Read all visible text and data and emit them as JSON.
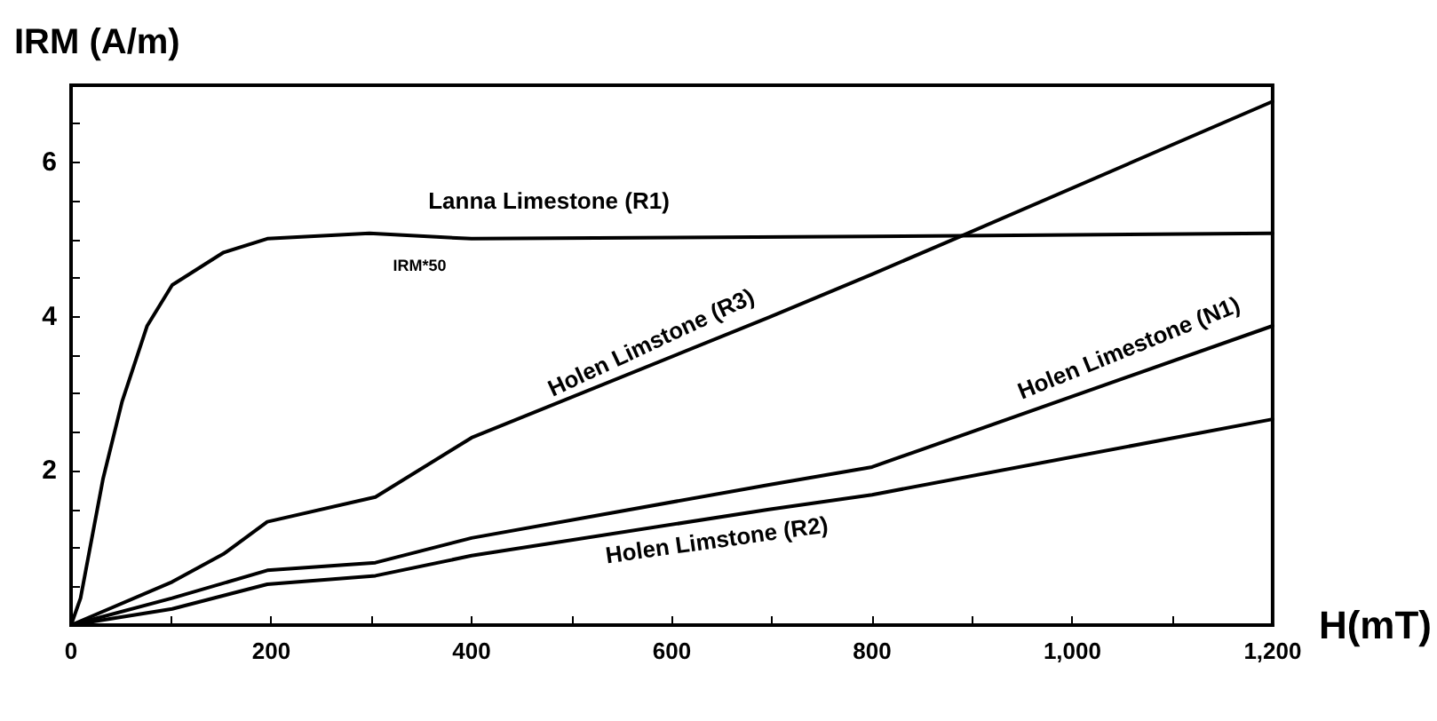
{
  "chart_data": {
    "type": "line",
    "xlabel": "H(mT)",
    "ylabel": "IRM (A/m)",
    "x": [
      0,
      9.5,
      32,
      51,
      76,
      101,
      152,
      196,
      298,
      400,
      800,
      1200
    ],
    "series": [
      {
        "name": "Lanna Limestone (R1)",
        "color": "#000000",
        "values": [
          0,
          0.35,
          1.9,
          2.9,
          3.88,
          4.41,
          4.83,
          5.01,
          5.08,
          5.01,
          5.04,
          5.08
        ]
      },
      {
        "name": "Holen Limstone (R3)",
        "color": "#000000",
        "x": [
          0,
          101,
          152,
          196,
          304,
          400,
          697,
          800,
          890,
          1200
        ],
        "values": [
          0,
          0.56,
          0.92,
          1.34,
          1.66,
          2.43,
          3.99,
          4.55,
          5.05,
          6.79
        ]
      },
      {
        "name": "Holen Limestone (N1)",
        "color": "#000000",
        "x": [
          0,
          101,
          196,
          304,
          400,
          697,
          800,
          1200
        ],
        "values": [
          0,
          0.35,
          0.71,
          0.81,
          1.13,
          1.82,
          2.05,
          3.88
        ]
      },
      {
        "name": "Holen Limstone (R2)",
        "color": "#000000",
        "x": [
          0,
          101,
          196,
          304,
          400,
          697,
          800,
          1200
        ],
        "values": [
          0,
          0.21,
          0.53,
          0.64,
          0.9,
          1.5,
          1.69,
          2.67
        ]
      }
    ],
    "xlim": [
      0,
      1200
    ],
    "xticks": [
      0,
      {
        "value": 100,
        "label": null
      },
      200,
      {
        "value": 300,
        "label": null
      },
      400,
      {
        "value": 500,
        "label": null
      },
      600,
      {
        "value": 700,
        "label": null
      },
      800,
      {
        "value": 900,
        "label": null
      },
      {
        "value": 1000,
        "label": "1,000"
      },
      {
        "value": 1100,
        "label": null
      },
      {
        "value": 1200,
        "label": "1,200"
      }
    ],
    "ylim": [
      0,
      7
    ],
    "yticks": [
      {
        "value": 0.5,
        "label": null
      },
      {
        "value": 1,
        "label": null
      },
      {
        "value": 1.5,
        "label": null
      },
      2,
      {
        "value": 2.5,
        "label": null
      },
      {
        "value": 3,
        "label": null
      },
      {
        "value": 3.5,
        "label": null
      },
      4,
      {
        "value": 4.5,
        "label": null
      },
      {
        "value": 5,
        "label": null
      },
      {
        "value": 5.5,
        "label": null
      },
      6,
      {
        "value": 6.5,
        "label": null
      }
    ],
    "annotations": [
      "IRM*50"
    ],
    "grid": false,
    "legend": false,
    "marker": "none"
  }
}
